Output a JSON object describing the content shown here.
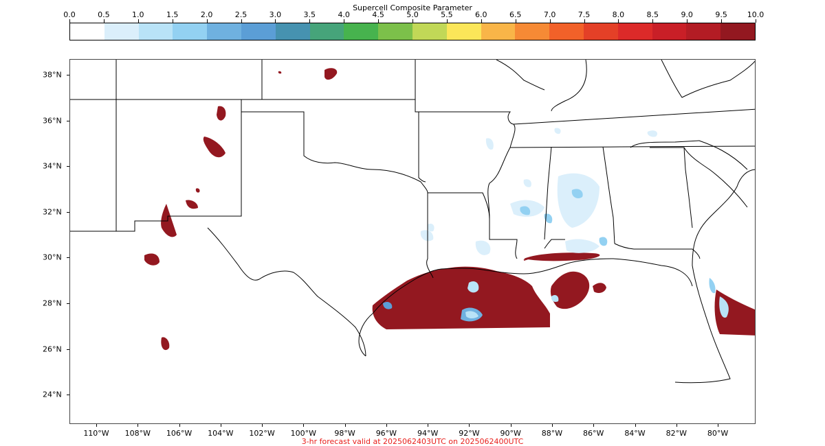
{
  "colorbar": {
    "title": "Supercell Composite Parameter",
    "ticks": [
      "0.0",
      "0.5",
      "1.0",
      "1.5",
      "2.0",
      "2.5",
      "3.0",
      "3.5",
      "4.0",
      "4.5",
      "5.0",
      "5.5",
      "6.0",
      "6.5",
      "7.0",
      "7.5",
      "8.0",
      "8.5",
      "9.0",
      "9.5",
      "10.0"
    ],
    "colors": [
      "#ffffff",
      "#dbeffb",
      "#b9e3f7",
      "#93d1f2",
      "#6fb1e0",
      "#5b9ed6",
      "#4692b0",
      "#46a47a",
      "#47b34e",
      "#7cc04a",
      "#c1d857",
      "#fbe659",
      "#f9b548",
      "#f68a35",
      "#f26129",
      "#e44027",
      "#dc2a29",
      "#c91f27",
      "#b31c24",
      "#931820"
    ]
  },
  "map": {
    "lat_labels": [
      "38°N",
      "36°N",
      "34°N",
      "32°N",
      "30°N",
      "28°N",
      "26°N",
      "24°N"
    ],
    "lon_labels": [
      "110°W",
      "108°W",
      "106°W",
      "104°W",
      "102°W",
      "100°W",
      "98°W",
      "96°W",
      "94°W",
      "92°W",
      "90°W",
      "88°W",
      "86°W",
      "84°W",
      "82°W",
      "80°W"
    ]
  },
  "footer": "3-hr forecast valid at 2025062403UTC on 2025062400UTC"
}
